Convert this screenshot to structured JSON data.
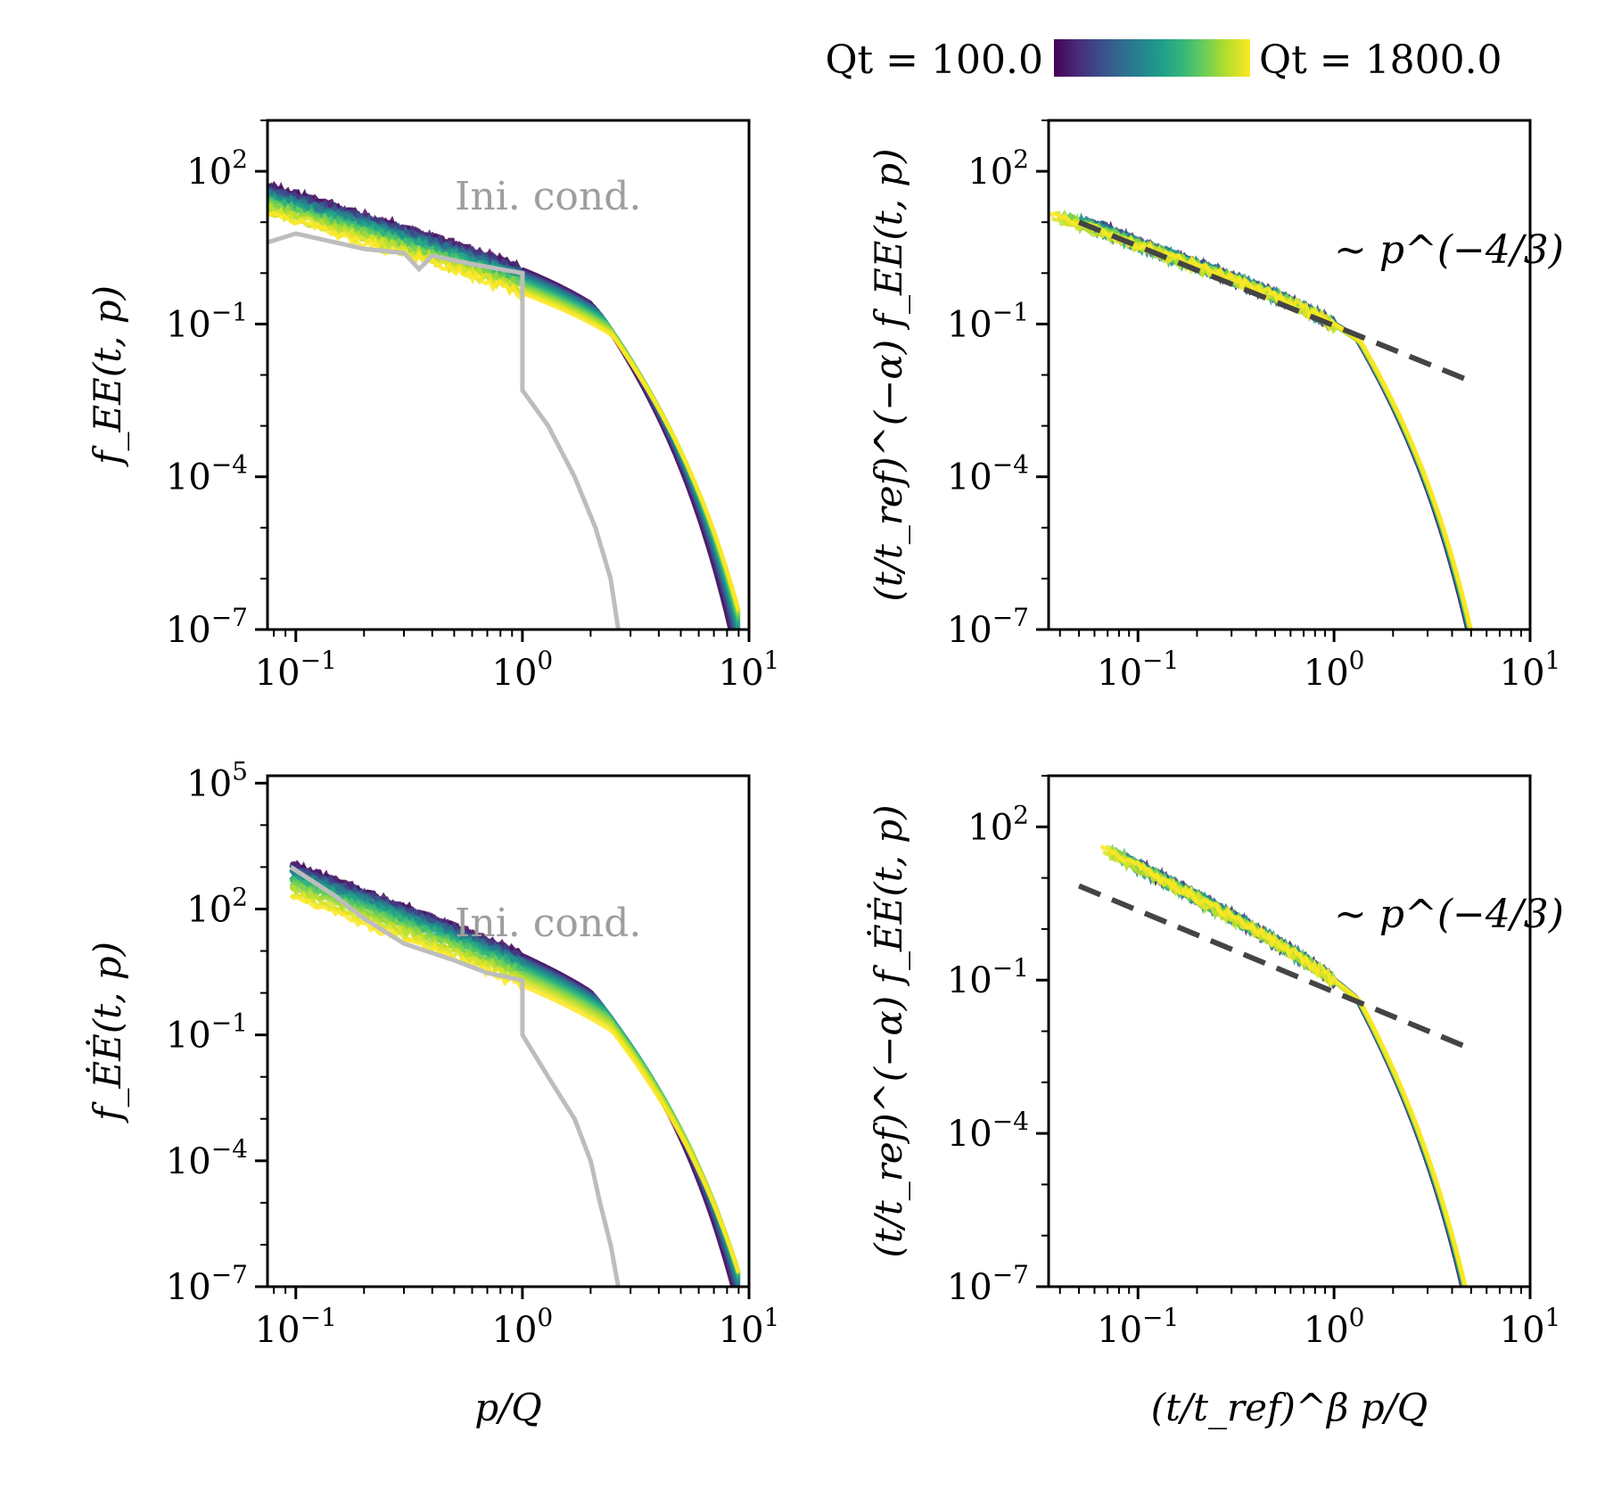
{
  "colorbar": {
    "label_min": "Qt = 100.0",
    "label_max": "Qt = 1800.0",
    "colors": [
      "#440154",
      "#482878",
      "#3e4989",
      "#31688e",
      "#26828e",
      "#1f9e89",
      "#35b779",
      "#6ece58",
      "#b5de2b",
      "#fde725"
    ]
  },
  "chart_data": [
    {
      "id": "top-left",
      "type": "line",
      "x_scale": "log",
      "y_scale": "log",
      "xlim": [
        0.075,
        10
      ],
      "ylim": [
        1e-07,
        1000
      ],
      "x_ticks": [
        {
          "v": 0.1,
          "base": "10",
          "exp": "−1"
        },
        {
          "v": 1,
          "base": "10",
          "exp": "0"
        },
        {
          "v": 10,
          "base": "10",
          "exp": "1"
        }
      ],
      "y_ticks": [
        {
          "v": 1e-07,
          "base": "10",
          "exp": "−7"
        },
        {
          "v": 0.0001,
          "base": "10",
          "exp": "−4"
        },
        {
          "v": 0.1,
          "base": "10",
          "exp": "−1"
        },
        {
          "v": 100,
          "base": "10",
          "exp": "2"
        }
      ],
      "ylabel": "f_EE(t, p)",
      "xlabel": "",
      "ini_label": "Ini. cond.",
      "power_label": "",
      "ini_curve": [
        [
          0.075,
          4
        ],
        [
          0.1,
          6
        ],
        [
          0.2,
          3
        ],
        [
          0.3,
          2.5
        ],
        [
          0.35,
          1.2
        ],
        [
          0.4,
          2.2
        ],
        [
          0.6,
          1.5
        ],
        [
          1.0,
          1.0
        ],
        [
          1.0,
          0.005
        ],
        [
          1.3,
          0.001
        ],
        [
          1.7,
          0.0001
        ],
        [
          2.1,
          1e-05
        ],
        [
          2.45,
          1e-06
        ],
        [
          2.65,
          1e-07
        ]
      ],
      "family": {
        "kind": "unscaled",
        "A0": 1.2,
        "A1": 0.4,
        "pc0": 2.0,
        "pc1": 2.5,
        "slope": 1.333,
        "tail_n": 5.2,
        "p_start": 0.075,
        "p_end": 9
      }
    },
    {
      "id": "top-right",
      "type": "line",
      "x_scale": "log",
      "y_scale": "log",
      "xlim": [
        0.035,
        10
      ],
      "ylim": [
        1e-07,
        1000
      ],
      "x_ticks": [
        {
          "v": 0.1,
          "base": "10",
          "exp": "−1"
        },
        {
          "v": 1,
          "base": "10",
          "exp": "0"
        },
        {
          "v": 10,
          "base": "10",
          "exp": "1"
        }
      ],
      "y_ticks": [
        {
          "v": 1e-07,
          "base": "10",
          "exp": "−7"
        },
        {
          "v": 0.0001,
          "base": "10",
          "exp": "−4"
        },
        {
          "v": 0.1,
          "base": "10",
          "exp": "−1"
        },
        {
          "v": 100,
          "base": "10",
          "exp": "2"
        }
      ],
      "ylabel": "(t/t_ref)^(−α) f_EE(t, p)",
      "xlabel": "",
      "ini_label": "",
      "power_label": "∼ p^(−4/3)",
      "power_line": [
        [
          0.05,
          10
        ],
        [
          5,
          0.0075
        ]
      ],
      "family": {
        "kind": "scaled",
        "A": 0.1,
        "pc": 1.3,
        "slope": 1.333,
        "tail_n": 5.5,
        "p_start0": 0.035,
        "p_start1": 0.065,
        "p_end": 6.5
      }
    },
    {
      "id": "bottom-left",
      "type": "line",
      "x_scale": "log",
      "y_scale": "log",
      "xlim": [
        0.075,
        10
      ],
      "ylim": [
        1e-07,
        150000
      ],
      "x_ticks": [
        {
          "v": 0.1,
          "base": "10",
          "exp": "−1"
        },
        {
          "v": 1,
          "base": "10",
          "exp": "0"
        },
        {
          "v": 10,
          "base": "10",
          "exp": "1"
        }
      ],
      "y_ticks": [
        {
          "v": 1e-07,
          "base": "10",
          "exp": "−7"
        },
        {
          "v": 0.0001,
          "base": "10",
          "exp": "−4"
        },
        {
          "v": 0.1,
          "base": "10",
          "exp": "−1"
        },
        {
          "v": 100,
          "base": "10",
          "exp": "2"
        },
        {
          "v": 100000,
          "base": "10",
          "exp": "5"
        }
      ],
      "ylabel": "f_ĖĖ(t, p)",
      "xlabel": "p/Q",
      "ini_label": "Ini. cond.",
      "power_label": "",
      "ini_curve": [
        [
          0.095,
          1000
        ],
        [
          0.15,
          200
        ],
        [
          0.2,
          60
        ],
        [
          0.3,
          15
        ],
        [
          0.5,
          6
        ],
        [
          0.7,
          3
        ],
        [
          1.0,
          2
        ],
        [
          1.0,
          0.1
        ],
        [
          1.3,
          0.01
        ],
        [
          1.7,
          0.001
        ],
        [
          2.0,
          0.0001
        ],
        [
          2.2,
          1e-05
        ],
        [
          2.45,
          1e-06
        ],
        [
          2.65,
          1e-07
        ]
      ],
      "family": {
        "kind": "unscaled_steep",
        "A0": 8,
        "A1": 1.5,
        "pc0": 2.0,
        "pc1": 2.5,
        "slope": 2.0,
        "tail_n": 5.2,
        "p_start": 0.095,
        "p_end": 9
      }
    },
    {
      "id": "bottom-right",
      "type": "line",
      "x_scale": "log",
      "y_scale": "log",
      "xlim": [
        0.035,
        10
      ],
      "ylim": [
        1e-07,
        1000
      ],
      "x_ticks": [
        {
          "v": 0.1,
          "base": "10",
          "exp": "−1"
        },
        {
          "v": 1,
          "base": "10",
          "exp": "0"
        },
        {
          "v": 10,
          "base": "10",
          "exp": "1"
        }
      ],
      "y_ticks": [
        {
          "v": 1e-07,
          "base": "10",
          "exp": "−7"
        },
        {
          "v": 0.0001,
          "base": "10",
          "exp": "−4"
        },
        {
          "v": 0.1,
          "base": "10",
          "exp": "−1"
        },
        {
          "v": 100,
          "base": "10",
          "exp": "2"
        }
      ],
      "ylabel": "(t/t_ref)^(−α) f_ĖĖ(t, p)",
      "xlabel": "(t/t_ref)^β p/Q",
      "ini_label": "",
      "power_label": "∼ p^(−4/3)",
      "power_line": [
        [
          0.05,
          7
        ],
        [
          5,
          0.0045
        ]
      ],
      "family": {
        "kind": "scaled_steep",
        "A": 0.1,
        "pc": 1.3,
        "slope": 2.0,
        "tail_n": 5.5,
        "p_start0": 0.065,
        "p_start1": 0.1,
        "p_end": 6.5
      }
    }
  ]
}
